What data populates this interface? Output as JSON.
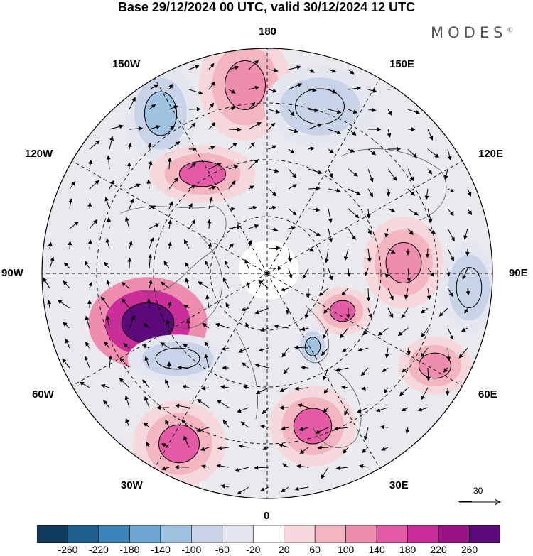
{
  "title": "Base 29/12/2024 00 UTC, valid 30/12/2024 12 UTC",
  "logo": "MODES",
  "logo_mark": "©",
  "longitude_labels": {
    "north": "180",
    "south": "0",
    "west": "90W",
    "east": "90E",
    "nw_upper": "150W",
    "nw_lower": "120W",
    "ne_upper": "150E",
    "ne_lower": "120E",
    "sw_upper": "60W",
    "sw_lower": "30W",
    "se_upper": "60E",
    "se_lower": "30E"
  },
  "reference_vector": "30",
  "colorbar": {
    "colors": [
      "#0f3a5c",
      "#1d5f8f",
      "#3b82b8",
      "#6aa6d1",
      "#9fc3e1",
      "#c8d3e8",
      "#e4e6f0",
      "#ffffff",
      "#f6d8dc",
      "#f3b5c0",
      "#ef8db0",
      "#e35aa5",
      "#c92d97",
      "#9a1288",
      "#5c0a7a"
    ],
    "ticks": [
      "-260",
      "-220",
      "-180",
      "-140",
      "-100",
      "-60",
      "-20",
      "20",
      "60",
      "100",
      "140",
      "180",
      "220",
      "260"
    ]
  },
  "anomaly_features": [
    {
      "sign": "positive",
      "level": 100,
      "region": "near 180 longitude"
    },
    {
      "sign": "negative",
      "level": -100,
      "region": "150E"
    },
    {
      "sign": "negative",
      "level": -140,
      "region": "150W"
    },
    {
      "sign": "positive",
      "level": 140,
      "region": "120W-150W"
    },
    {
      "sign": "positive",
      "level": 260,
      "region": "north atlantic 60W"
    },
    {
      "sign": "negative",
      "level": -100,
      "region": "60W south of max"
    },
    {
      "sign": "positive",
      "level": 140,
      "region": "30W"
    },
    {
      "sign": "positive",
      "level": 140,
      "region": "30E"
    },
    {
      "sign": "positive",
      "level": 100,
      "region": "90E"
    },
    {
      "sign": "negative",
      "level": -100,
      "region": "90E east"
    },
    {
      "sign": "positive",
      "level": 100,
      "region": "60E"
    },
    {
      "sign": "negative",
      "level": -140,
      "region": "scandinavia"
    },
    {
      "sign": "positive",
      "level": 140,
      "region": "north of scandinavia"
    }
  ]
}
